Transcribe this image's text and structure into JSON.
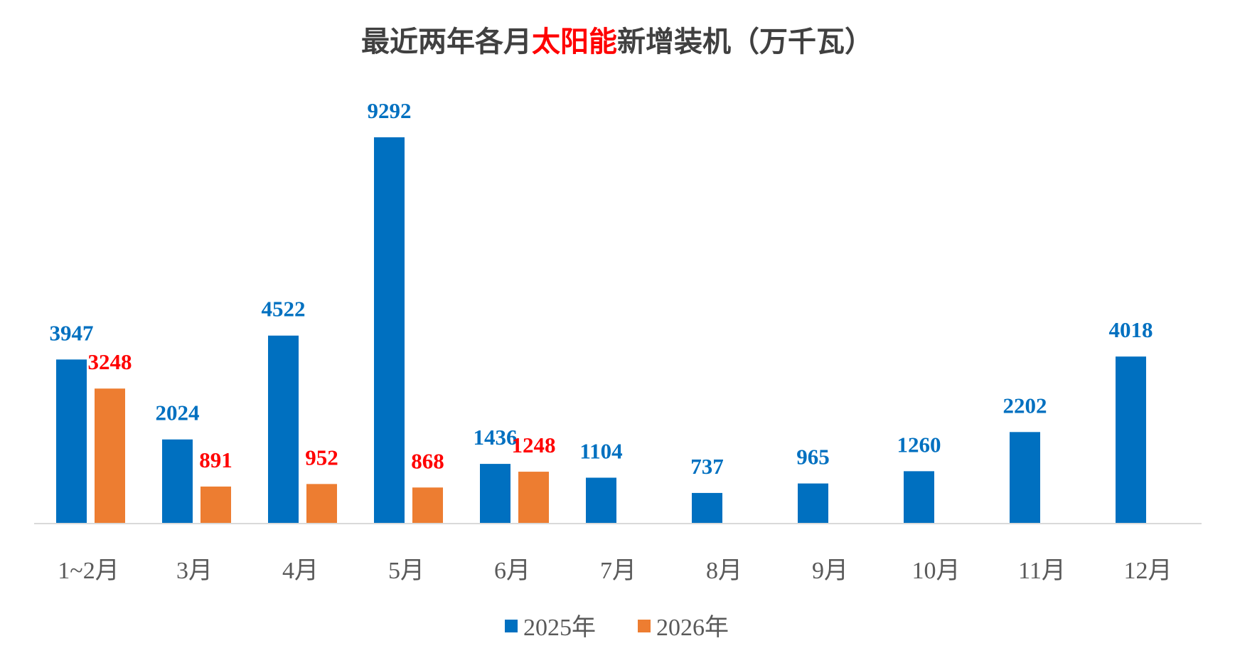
{
  "chart_data": {
    "type": "bar",
    "title_parts": [
      {
        "text": "最近两年各月",
        "color": "#404040"
      },
      {
        "text": "太阳能",
        "color": "#ff0000"
      },
      {
        "text": "新增装机（万千瓦）",
        "color": "#404040"
      }
    ],
    "categories": [
      "1~2月",
      "3月",
      "4月",
      "5月",
      "6月",
      "7月",
      "8月",
      "9月",
      "10月",
      "11月",
      "12月"
    ],
    "series": [
      {
        "name": "2025年",
        "color": "#0070c0",
        "label_color": "#0070c0",
        "values": [
          3947,
          2024,
          4522,
          9292,
          1436,
          1104,
          737,
          965,
          1260,
          2202,
          4018
        ]
      },
      {
        "name": "2026年",
        "color": "#ed7d31",
        "label_color": "#ff0000",
        "values": [
          3248,
          891,
          952,
          868,
          1248,
          null,
          null,
          null,
          null,
          null,
          null
        ]
      }
    ],
    "ylim": [
      0,
      9292
    ],
    "grid": false,
    "legend_position": "bottom",
    "xlabel": "",
    "ylabel": ""
  }
}
